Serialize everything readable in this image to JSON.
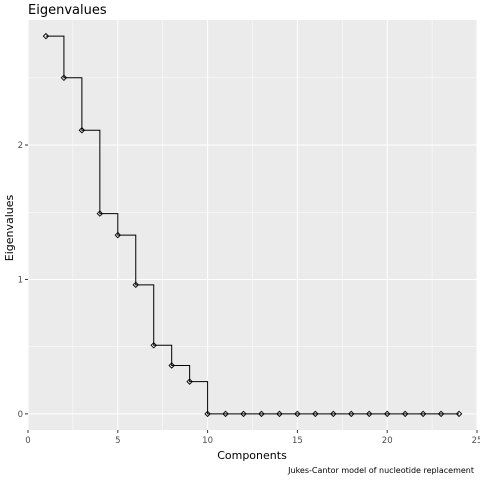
{
  "chart_data": {
    "type": "line",
    "step": true,
    "markers": "open-diamond",
    "title": "Eigenvalues",
    "xlabel": "Components",
    "ylabel": "Eigenvalues",
    "caption": "Jukes-Cantor model of nucleotide replacement",
    "xlim": [
      0,
      25
    ],
    "ylim": [
      -0.12,
      2.93
    ],
    "xticks": [
      0,
      5,
      10,
      15,
      20,
      25
    ],
    "xtick_labels": [
      "0",
      "5",
      "10",
      "15",
      "20",
      "25"
    ],
    "yticks": [
      0,
      1,
      2
    ],
    "ytick_labels": [
      "0",
      "1",
      "2"
    ],
    "grid": true,
    "series": [
      {
        "x": [
          1,
          2,
          3,
          4,
          5,
          6,
          7,
          8,
          9,
          10,
          11,
          12,
          13,
          14,
          15,
          16,
          17,
          18,
          19,
          20,
          21,
          22,
          23,
          24
        ],
        "values": [
          2.81,
          2.5,
          2.11,
          1.49,
          1.33,
          0.96,
          0.51,
          0.36,
          0.24,
          0,
          0,
          0,
          0,
          0,
          0,
          0,
          0,
          0,
          0,
          0,
          0,
          0,
          0,
          0
        ]
      }
    ],
    "colors": {
      "panel": "#ebebeb",
      "grid": "#ffffff",
      "line": "#000000",
      "tick_text": "#4d4d4d"
    }
  }
}
